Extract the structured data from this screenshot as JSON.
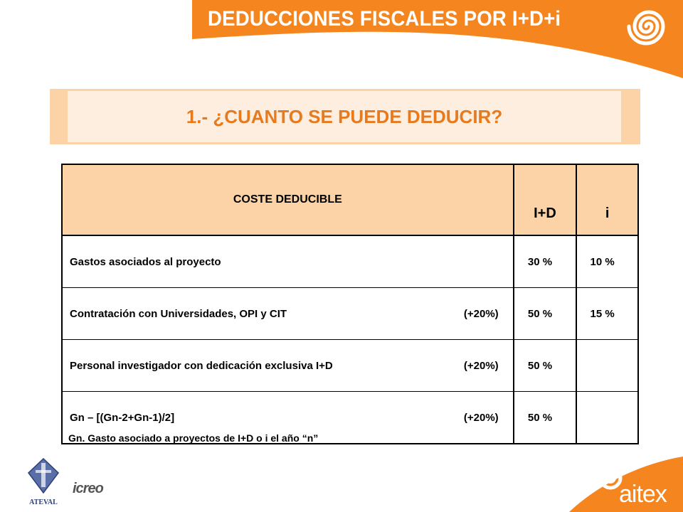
{
  "slide": {
    "title": "DEDUCCIONES FISCALES POR I+D+i"
  },
  "section": {
    "title": "1.- ¿CUANTO SE PUEDE DEDUCIR?"
  },
  "table": {
    "headers": [
      "COSTE  DEDUCIBLE",
      "I+D",
      "i"
    ],
    "rows": [
      {
        "concept": "Gastos asociados al proyecto",
        "extra": "",
        "id": "30 %",
        "i": "10 %"
      },
      {
        "concept": "Contratación con Universidades, OPI y CIT",
        "extra": "(+20%)",
        "id": "50 %",
        "i": "15 %"
      },
      {
        "concept": "Personal investigador con dedicación exclusiva I+D",
        "extra": "(+20%)",
        "id": "50 %",
        "i": ""
      },
      {
        "concept": "Gn – [(Gn-2+Gn-1)/2]",
        "extra": "(+20%)",
        "id": "50 %",
        "i": ""
      }
    ]
  },
  "footnote": "Gn. Gasto asociado a proyectos de I+D o i el año “n”",
  "logos": {
    "left": "ATEVAL",
    "middle": "icreo",
    "right": "aitex"
  },
  "colors": {
    "orange": "#f5861f",
    "peach": "#fbd3a6",
    "pale": "#fdeee0",
    "title_orange": "#e87a1e"
  }
}
